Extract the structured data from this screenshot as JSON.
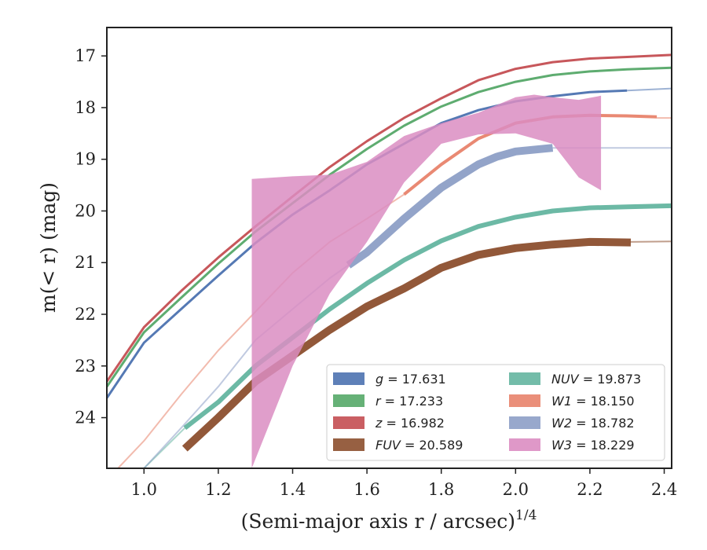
{
  "chart_data": {
    "type": "line",
    "xlabel": "(Semi-major axis r / arcsec)",
    "xlabel_sup": "1/4",
    "ylabel": "m(< r) (mag)",
    "xlim": [
      0.9,
      2.42
    ],
    "ylim": [
      24.98,
      16.45
    ],
    "y_inverted": true,
    "xticks": [
      1.0,
      1.2,
      1.4,
      1.6,
      1.8,
      2.0,
      2.2,
      2.4
    ],
    "xtick_labels": [
      "1.0",
      "1.2",
      "1.4",
      "1.6",
      "1.8",
      "2.0",
      "2.2",
      "2.4"
    ],
    "yticks": [
      17,
      18,
      19,
      20,
      21,
      22,
      23,
      24
    ],
    "ytick_labels": [
      "17",
      "18",
      "19",
      "20",
      "21",
      "22",
      "23",
      "24"
    ],
    "legend_position": "lower-right",
    "grid": false,
    "series": [
      {
        "key": "g",
        "name": "g = 17.631",
        "var": "g",
        "val": "= 17.631",
        "color": "#4c72b0",
        "width": 3,
        "fade_width": 2,
        "main": [
          [
            0.9,
            23.62
          ],
          [
            1.0,
            22.55
          ],
          [
            1.1,
            21.9
          ],
          [
            1.2,
            21.25
          ],
          [
            1.3,
            20.62
          ],
          [
            1.4,
            20.07
          ],
          [
            1.5,
            19.6
          ],
          [
            1.6,
            19.1
          ],
          [
            1.7,
            18.7
          ],
          [
            1.8,
            18.3
          ],
          [
            1.9,
            18.05
          ],
          [
            2.0,
            17.88
          ],
          [
            2.1,
            17.78
          ],
          [
            2.2,
            17.7
          ],
          [
            2.3,
            17.67
          ]
        ],
        "fade": [
          [
            2.3,
            17.67
          ],
          [
            2.42,
            17.63
          ]
        ]
      },
      {
        "key": "r",
        "name": "r = 17.233",
        "var": "r",
        "val": "= 17.233",
        "color": "#55a868",
        "width": 3,
        "fade_width": 2,
        "main": [
          [
            0.9,
            23.4
          ],
          [
            1.0,
            22.35
          ],
          [
            1.1,
            21.68
          ],
          [
            1.2,
            21.02
          ],
          [
            1.3,
            20.4
          ],
          [
            1.4,
            19.85
          ],
          [
            1.5,
            19.3
          ],
          [
            1.6,
            18.8
          ],
          [
            1.7,
            18.35
          ],
          [
            1.8,
            17.98
          ],
          [
            1.9,
            17.7
          ],
          [
            2.0,
            17.5
          ],
          [
            2.1,
            17.37
          ],
          [
            2.2,
            17.3
          ],
          [
            2.3,
            17.26
          ],
          [
            2.42,
            17.23
          ]
        ],
        "fade": []
      },
      {
        "key": "z",
        "name": "z = 16.982",
        "var": "z",
        "val": "= 16.982",
        "color": "#c44e52",
        "width": 3,
        "fade_width": 2,
        "main": [
          [
            0.9,
            23.3
          ],
          [
            1.0,
            22.25
          ],
          [
            1.1,
            21.55
          ],
          [
            1.2,
            20.9
          ],
          [
            1.3,
            20.3
          ],
          [
            1.4,
            19.72
          ],
          [
            1.5,
            19.15
          ],
          [
            1.6,
            18.65
          ],
          [
            1.7,
            18.2
          ],
          [
            1.8,
            17.82
          ],
          [
            1.9,
            17.47
          ],
          [
            2.0,
            17.25
          ],
          [
            2.1,
            17.12
          ],
          [
            2.2,
            17.05
          ],
          [
            2.3,
            17.02
          ],
          [
            2.42,
            16.98
          ]
        ],
        "fade": []
      },
      {
        "key": "fuv",
        "name": "FUV = 20.589",
        "var": "FUV",
        "val": "= 20.589",
        "color": "#8c4f2e",
        "width": 10,
        "fade_width": 2,
        "main": [
          [
            1.11,
            24.6
          ],
          [
            1.2,
            24.0
          ],
          [
            1.3,
            23.3
          ],
          [
            1.4,
            22.8
          ],
          [
            1.5,
            22.3
          ],
          [
            1.6,
            21.85
          ],
          [
            1.7,
            21.5
          ],
          [
            1.8,
            21.1
          ],
          [
            1.9,
            20.85
          ],
          [
            2.0,
            20.72
          ],
          [
            2.1,
            20.65
          ],
          [
            2.2,
            20.6
          ],
          [
            2.31,
            20.61
          ]
        ],
        "fade": [
          [
            2.31,
            20.6
          ],
          [
            2.42,
            20.59
          ]
        ]
      },
      {
        "key": "nuv",
        "name": "NUV = 19.873",
        "var": "NUV",
        "val": "= 19.873",
        "color": "#64b5a0",
        "width": 6,
        "fade_width": 2,
        "main": [
          [
            1.11,
            24.2
          ],
          [
            1.2,
            23.7
          ],
          [
            1.3,
            23.0
          ],
          [
            1.4,
            22.45
          ],
          [
            1.5,
            21.9
          ],
          [
            1.6,
            21.4
          ],
          [
            1.7,
            20.95
          ],
          [
            1.8,
            20.58
          ],
          [
            1.9,
            20.3
          ],
          [
            2.0,
            20.12
          ],
          [
            2.1,
            20.0
          ],
          [
            2.2,
            19.94
          ],
          [
            2.3,
            19.92
          ],
          [
            2.42,
            19.9
          ]
        ],
        "fade": [
          [
            1.0,
            24.98
          ],
          [
            1.11,
            24.2
          ]
        ]
      },
      {
        "key": "w1",
        "name": "W1 = 18.150",
        "var": "W1",
        "val": "= 18.150",
        "color": "#e8836b",
        "width": 4,
        "fade_width": 2,
        "main": [
          [
            1.7,
            19.68
          ],
          [
            1.8,
            19.1
          ],
          [
            1.9,
            18.6
          ],
          [
            2.0,
            18.3
          ],
          [
            2.1,
            18.18
          ],
          [
            2.2,
            18.15
          ],
          [
            2.3,
            18.16
          ],
          [
            2.38,
            18.18
          ]
        ],
        "fade": [
          [
            0.93,
            24.98
          ],
          [
            1.0,
            24.45
          ],
          [
            1.1,
            23.55
          ],
          [
            1.2,
            22.7
          ],
          [
            1.3,
            21.95
          ],
          [
            1.4,
            21.2
          ],
          [
            1.5,
            20.6
          ],
          [
            1.6,
            20.15
          ],
          [
            1.7,
            19.68
          ]
        ],
        "fade2": [
          [
            2.38,
            18.2
          ],
          [
            2.42,
            18.2
          ]
        ]
      },
      {
        "key": "w2",
        "name": "W2 = 18.782",
        "var": "W2",
        "val": "= 18.782",
        "color": "#8d9fc6",
        "width": 10,
        "fade_width": 2,
        "main": [
          [
            1.55,
            21.05
          ],
          [
            1.6,
            20.8
          ],
          [
            1.7,
            20.15
          ],
          [
            1.8,
            19.55
          ],
          [
            1.9,
            19.1
          ],
          [
            1.95,
            18.95
          ],
          [
            2.0,
            18.85
          ],
          [
            2.1,
            18.78
          ]
        ],
        "fade": [
          [
            1.0,
            24.98
          ],
          [
            1.1,
            24.2
          ],
          [
            1.2,
            23.4
          ],
          [
            1.3,
            22.5
          ],
          [
            1.4,
            21.9
          ],
          [
            1.5,
            21.3
          ],
          [
            1.55,
            21.05
          ]
        ],
        "fade2": [
          [
            2.1,
            18.78
          ],
          [
            2.42,
            18.78
          ]
        ]
      },
      {
        "key": "w3",
        "name": "W3 = 18.229",
        "var": "W3",
        "val": "= 18.229",
        "color": "#db8dc2",
        "width": 0,
        "fade_width": 0,
        "band_upper": [
          [
            1.29,
            19.38
          ],
          [
            1.4,
            19.33
          ],
          [
            1.5,
            19.3
          ],
          [
            1.6,
            19.05
          ],
          [
            1.7,
            18.55
          ],
          [
            1.8,
            18.3
          ],
          [
            1.9,
            18.1
          ],
          [
            2.0,
            17.8
          ],
          [
            2.05,
            17.75
          ],
          [
            2.1,
            17.8
          ],
          [
            2.17,
            17.85
          ],
          [
            2.23,
            17.77
          ]
        ],
        "band_lower": [
          [
            2.23,
            19.6
          ],
          [
            2.17,
            19.35
          ],
          [
            2.1,
            18.7
          ],
          [
            2.0,
            18.5
          ],
          [
            1.9,
            18.52
          ],
          [
            1.8,
            18.7
          ],
          [
            1.7,
            19.45
          ],
          [
            1.6,
            20.6
          ],
          [
            1.5,
            21.6
          ],
          [
            1.4,
            23.0
          ],
          [
            1.29,
            24.98
          ]
        ]
      }
    ]
  }
}
